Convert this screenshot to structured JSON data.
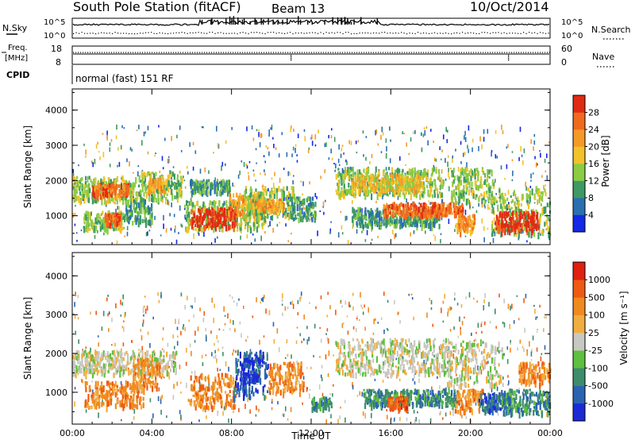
{
  "header": {
    "station": "South Pole Station (fitACF)",
    "beam": "Beam 13",
    "date": "10/Oct/2014"
  },
  "top_panels": {
    "nsky_label": "N.Sky",
    "nsearch_label": "N.Search",
    "freq_label_1": "Freq.",
    "freq_label_2": "[MHz]",
    "nave_label": "Nave",
    "cpid_label": "CPID",
    "cpid_text": "normal (fast) 151 RF",
    "noise_ticks_left": [
      "10^5",
      "10^0"
    ],
    "noise_ticks_right": [
      "10^5",
      "10^0"
    ],
    "freq_ticks": [
      "18",
      "8"
    ],
    "nave_ticks": [
      "60",
      "0"
    ]
  },
  "power_colorbar": {
    "title": "Power [dB]",
    "ticks": [
      "4",
      "8",
      "12",
      "16",
      "20",
      "24",
      "28"
    ],
    "colors": [
      "#1428e6",
      "#2a6fb0",
      "#3d9a62",
      "#8ccb44",
      "#f2c22a",
      "#f59a28",
      "#f06a1e",
      "#e02b14"
    ]
  },
  "velocity_colorbar": {
    "title": "Velocity [m s⁻¹]",
    "ticks": [
      "1000",
      "500",
      "100",
      "25",
      "-25",
      "-100",
      "-500",
      "-1000"
    ],
    "colors": [
      "#1c2ad6",
      "#2b63b2",
      "#3d8c6b",
      "#5fbf3f",
      "#c8c8c2",
      "#f1ad3f",
      "#f08a1e",
      "#ee5a14",
      "#e02010"
    ]
  },
  "chart_data": [
    {
      "type": "heatmap",
      "title": "Power",
      "xlabel": "",
      "ylabel": "Slant Range [km]",
      "xlim": [
        0,
        24
      ],
      "ylim": [
        180,
        4600
      ],
      "x_tick_labels": [
        "00:00",
        "04:00",
        "08:00",
        "12:00",
        "16:00",
        "20:00",
        "00:00"
      ],
      "y_tick_labels": [
        "1000",
        "2000",
        "3000",
        "4000"
      ],
      "regions": [
        {
          "t0": 0.0,
          "t1": 3.4,
          "r0": 1450,
          "r1": 2150,
          "level": 3
        },
        {
          "t0": 1.0,
          "t1": 2.8,
          "r0": 1600,
          "r1": 1950,
          "level": 6
        },
        {
          "t0": 3.4,
          "t1": 5.5,
          "r0": 1500,
          "r1": 2300,
          "level": 3
        },
        {
          "t0": 3.8,
          "t1": 4.6,
          "r0": 1700,
          "r1": 2100,
          "level": 5
        },
        {
          "t0": 0.5,
          "t1": 2.6,
          "r0": 650,
          "r1": 1150,
          "level": 3
        },
        {
          "t0": 1.6,
          "t1": 2.4,
          "r0": 800,
          "r1": 1100,
          "level": 6
        },
        {
          "t0": 2.6,
          "t1": 4.0,
          "r0": 850,
          "r1": 1550,
          "level": 2
        },
        {
          "t0": 5.6,
          "t1": 9.8,
          "r0": 650,
          "r1": 1450,
          "level": 3
        },
        {
          "t0": 5.9,
          "t1": 8.2,
          "r0": 720,
          "r1": 1250,
          "level": 7
        },
        {
          "t0": 7.8,
          "t1": 9.6,
          "r0": 1000,
          "r1": 1700,
          "level": 5
        },
        {
          "t0": 5.9,
          "t1": 7.9,
          "r0": 1700,
          "r1": 2050,
          "level": 2
        },
        {
          "t0": 8.6,
          "t1": 11.2,
          "r0": 1000,
          "r1": 1850,
          "level": 3
        },
        {
          "t0": 9.2,
          "t1": 10.6,
          "r0": 1150,
          "r1": 1500,
          "level": 5
        },
        {
          "t0": 11.0,
          "t1": 12.2,
          "r0": 950,
          "r1": 1550,
          "level": 2
        },
        {
          "t0": 13.2,
          "t1": 18.6,
          "r0": 1600,
          "r1": 2400,
          "level": 3
        },
        {
          "t0": 14.0,
          "t1": 17.6,
          "r0": 1750,
          "r1": 2200,
          "level": 4
        },
        {
          "t0": 14.0,
          "t1": 18.4,
          "r0": 750,
          "r1": 1250,
          "level": 2
        },
        {
          "t0": 15.6,
          "t1": 19.6,
          "r0": 1050,
          "r1": 1400,
          "level": 6
        },
        {
          "t0": 19.0,
          "t1": 21.2,
          "r0": 1450,
          "r1": 2400,
          "level": 3
        },
        {
          "t0": 19.2,
          "t1": 20.2,
          "r0": 550,
          "r1": 1050,
          "level": 5
        },
        {
          "t0": 21.0,
          "t1": 24.0,
          "r0": 500,
          "r1": 1850,
          "level": 3
        },
        {
          "t0": 21.2,
          "t1": 23.4,
          "r0": 600,
          "r1": 1150,
          "level": 7
        }
      ]
    },
    {
      "type": "heatmap",
      "title": "Velocity",
      "xlabel": "Time UT",
      "ylabel": "Slant Range [km]",
      "xlim": [
        0,
        24
      ],
      "ylim": [
        180,
        4600
      ],
      "x_tick_labels": [
        "00:00",
        "04:00",
        "08:00",
        "12:00",
        "16:00",
        "20:00",
        "00:00"
      ],
      "y_tick_labels": [
        "1000",
        "2000",
        "3000",
        "4000"
      ],
      "regions": [
        {
          "t0": 0.0,
          "t1": 5.2,
          "r0": 1500,
          "r1": 2100,
          "level": 4
        },
        {
          "t0": 0.6,
          "t1": 3.6,
          "r0": 650,
          "r1": 1300,
          "level": 6
        },
        {
          "t0": 3.0,
          "t1": 4.4,
          "r0": 1150,
          "r1": 1900,
          "level": 6
        },
        {
          "t0": 5.8,
          "t1": 8.2,
          "r0": 650,
          "r1": 1500,
          "level": 6
        },
        {
          "t0": 8.0,
          "t1": 9.8,
          "r0": 900,
          "r1": 2100,
          "level": 1
        },
        {
          "t0": 8.4,
          "t1": 9.4,
          "r0": 1300,
          "r1": 1900,
          "level": 0
        },
        {
          "t0": 9.8,
          "t1": 11.6,
          "r0": 1000,
          "r1": 1800,
          "level": 6
        },
        {
          "t0": 12.0,
          "t1": 13.0,
          "r0": 600,
          "r1": 900,
          "level": 2
        },
        {
          "t0": 13.2,
          "t1": 19.0,
          "r0": 1500,
          "r1": 2400,
          "level": 4
        },
        {
          "t0": 14.6,
          "t1": 19.4,
          "r0": 700,
          "r1": 1100,
          "level": 2
        },
        {
          "t0": 15.8,
          "t1": 16.8,
          "r0": 600,
          "r1": 900,
          "level": 7
        },
        {
          "t0": 18.8,
          "t1": 21.6,
          "r0": 1200,
          "r1": 2400,
          "level": 4
        },
        {
          "t0": 19.2,
          "t1": 20.6,
          "r0": 550,
          "r1": 1100,
          "level": 6
        },
        {
          "t0": 20.4,
          "t1": 22.0,
          "r0": 550,
          "r1": 1000,
          "level": 1
        },
        {
          "t0": 21.5,
          "t1": 24.0,
          "r0": 500,
          "r1": 1100,
          "level": 2
        },
        {
          "t0": 22.4,
          "t1": 24.0,
          "r0": 1250,
          "r1": 1800,
          "level": 6
        }
      ]
    }
  ]
}
